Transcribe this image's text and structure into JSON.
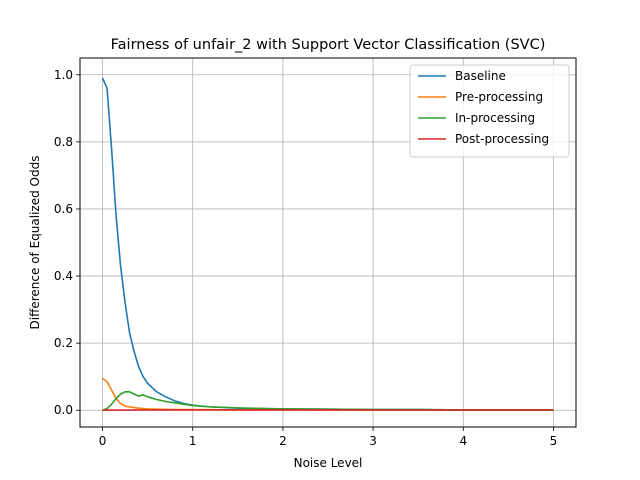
{
  "chart_data": {
    "type": "line",
    "title": "Fairness of unfair_2 with Support Vector Classification (SVC)",
    "xlabel": "Noise Level",
    "ylabel": "Difference of Equalized Odds",
    "xlim": [
      -0.25,
      5.25
    ],
    "ylim": [
      -0.05,
      1.05
    ],
    "xticks": [
      0,
      1,
      2,
      3,
      4,
      5
    ],
    "xtick_labels": [
      "0",
      "1",
      "2",
      "3",
      "4",
      "5"
    ],
    "yticks": [
      0.0,
      0.2,
      0.4,
      0.6,
      0.8,
      1.0
    ],
    "ytick_labels": [
      "0.0",
      "0.2",
      "0.4",
      "0.6",
      "0.8",
      "1.0"
    ],
    "grid": true,
    "legend_position": "top-right",
    "series": [
      {
        "name": "Baseline",
        "color": "#1f77b4",
        "x": [
          0,
          0.05,
          0.1,
          0.15,
          0.2,
          0.25,
          0.3,
          0.35,
          0.4,
          0.45,
          0.5,
          0.6,
          0.7,
          0.8,
          0.9,
          1.0,
          1.1,
          1.2,
          1.5,
          2.0,
          2.5,
          3.0,
          3.5,
          4.0,
          4.5,
          5.0
        ],
        "y": [
          0.99,
          0.96,
          0.78,
          0.58,
          0.43,
          0.32,
          0.23,
          0.175,
          0.13,
          0.1,
          0.08,
          0.055,
          0.04,
          0.028,
          0.02,
          0.015,
          0.012,
          0.01,
          0.006,
          0.004,
          0.003,
          0.002,
          0.002,
          0.001,
          0.001,
          0.001
        ]
      },
      {
        "name": "Pre-processing",
        "color": "#ff7f0e",
        "x": [
          0,
          0.05,
          0.1,
          0.15,
          0.2,
          0.25,
          0.3,
          0.35,
          0.4,
          0.5,
          0.6,
          0.8,
          1.0,
          1.5,
          2.0,
          3.0,
          4.0,
          5.0
        ],
        "y": [
          0.095,
          0.085,
          0.06,
          0.035,
          0.02,
          0.012,
          0.01,
          0.008,
          0.006,
          0.004,
          0.003,
          0.002,
          0.002,
          0.001,
          0.001,
          0.001,
          0.001,
          0.001
        ]
      },
      {
        "name": "In-processing",
        "color": "#2ca02c",
        "x": [
          0,
          0.05,
          0.1,
          0.15,
          0.2,
          0.25,
          0.3,
          0.35,
          0.4,
          0.45,
          0.5,
          0.6,
          0.7,
          0.8,
          0.9,
          1.0,
          1.2,
          1.5,
          2.0,
          2.5,
          3.0,
          3.5,
          4.0,
          4.5,
          5.0
        ],
        "y": [
          0.0,
          0.005,
          0.018,
          0.035,
          0.048,
          0.055,
          0.055,
          0.048,
          0.042,
          0.046,
          0.04,
          0.032,
          0.026,
          0.022,
          0.018,
          0.014,
          0.01,
          0.007,
          0.004,
          0.003,
          0.002,
          0.002,
          0.001,
          0.001,
          0.001
        ]
      },
      {
        "name": "Post-processing",
        "color": "#d62728",
        "x": [
          0,
          0.5,
          1.0,
          1.5,
          2.0,
          2.5,
          3.0,
          3.5,
          4.0,
          4.5,
          5.0
        ],
        "y": [
          0.0,
          0.001,
          0.001,
          0.001,
          0.001,
          0.001,
          0.0005,
          0.0005,
          0.0005,
          0.0005,
          0.0005
        ]
      }
    ]
  }
}
